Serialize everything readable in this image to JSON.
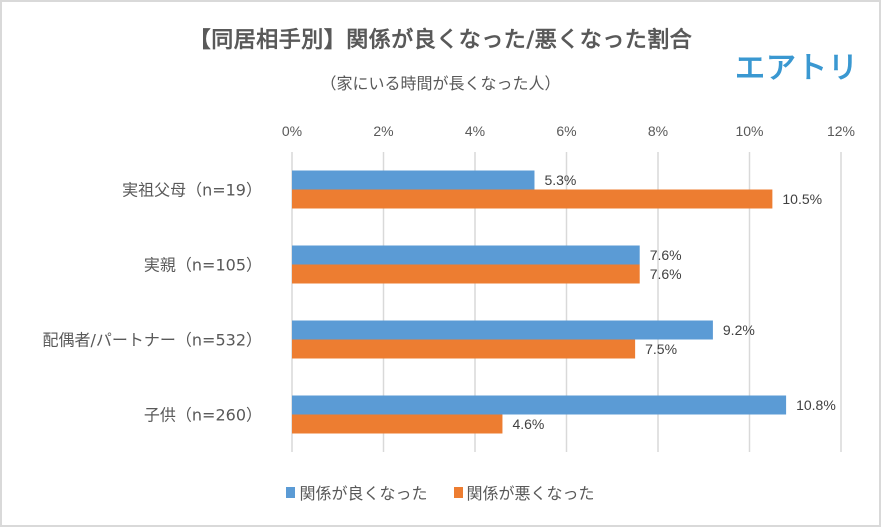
{
  "chart_data": {
    "type": "bar",
    "orientation": "horizontal",
    "title": "【同居相手別】関係が良くなった/悪くなった割合",
    "subtitle": "（家にいる時間が長くなった人）",
    "xlabel": "",
    "ylabel": "",
    "xlim": [
      0,
      12
    ],
    "xticks": [
      "0%",
      "2%",
      "4%",
      "6%",
      "8%",
      "10%",
      "12%"
    ],
    "xtick_values": [
      0,
      2,
      4,
      6,
      8,
      10,
      12
    ],
    "grid": true,
    "legend_position": "bottom",
    "categories": [
      "実祖父母（n=19）",
      "実親（n=105）",
      "配偶者/パートナー（n=532）",
      "子供（n=260）"
    ],
    "series": [
      {
        "name": "関係が良くなった",
        "color": "#5b9bd5",
        "values": [
          5.3,
          7.6,
          9.2,
          10.8
        ],
        "labels": [
          "5.3%",
          "7.6%",
          "9.2%",
          "10.8%"
        ]
      },
      {
        "name": "関係が悪くなった",
        "color": "#ed7d31",
        "values": [
          10.5,
          7.6,
          7.5,
          4.6
        ],
        "labels": [
          "10.5%",
          "7.6%",
          "7.5%",
          "4.6%"
        ]
      }
    ]
  },
  "brand": {
    "logo_text": "エアトリ",
    "logo_color": "#3a98d1"
  }
}
